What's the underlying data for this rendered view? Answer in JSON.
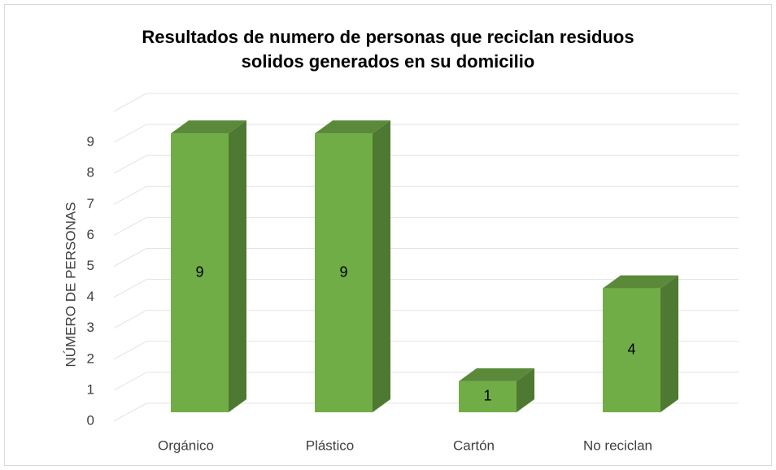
{
  "chart_data": {
    "type": "bar3d",
    "title": [
      "Resultados de numero de personas que reciclan residuos",
      "solidos generados en su domicilio"
    ],
    "y_label": "NÚMERO DE PERSONAS",
    "categories": [
      "Orgánico",
      "Plástico",
      "Cartón",
      "No reciclan"
    ],
    "values": [
      9,
      9,
      1,
      4
    ],
    "color": "#70ad47",
    "ylim": [
      0,
      10
    ],
    "yticks": [
      0,
      1,
      2,
      3,
      4,
      5,
      6,
      7,
      8,
      9
    ],
    "grid": true
  }
}
